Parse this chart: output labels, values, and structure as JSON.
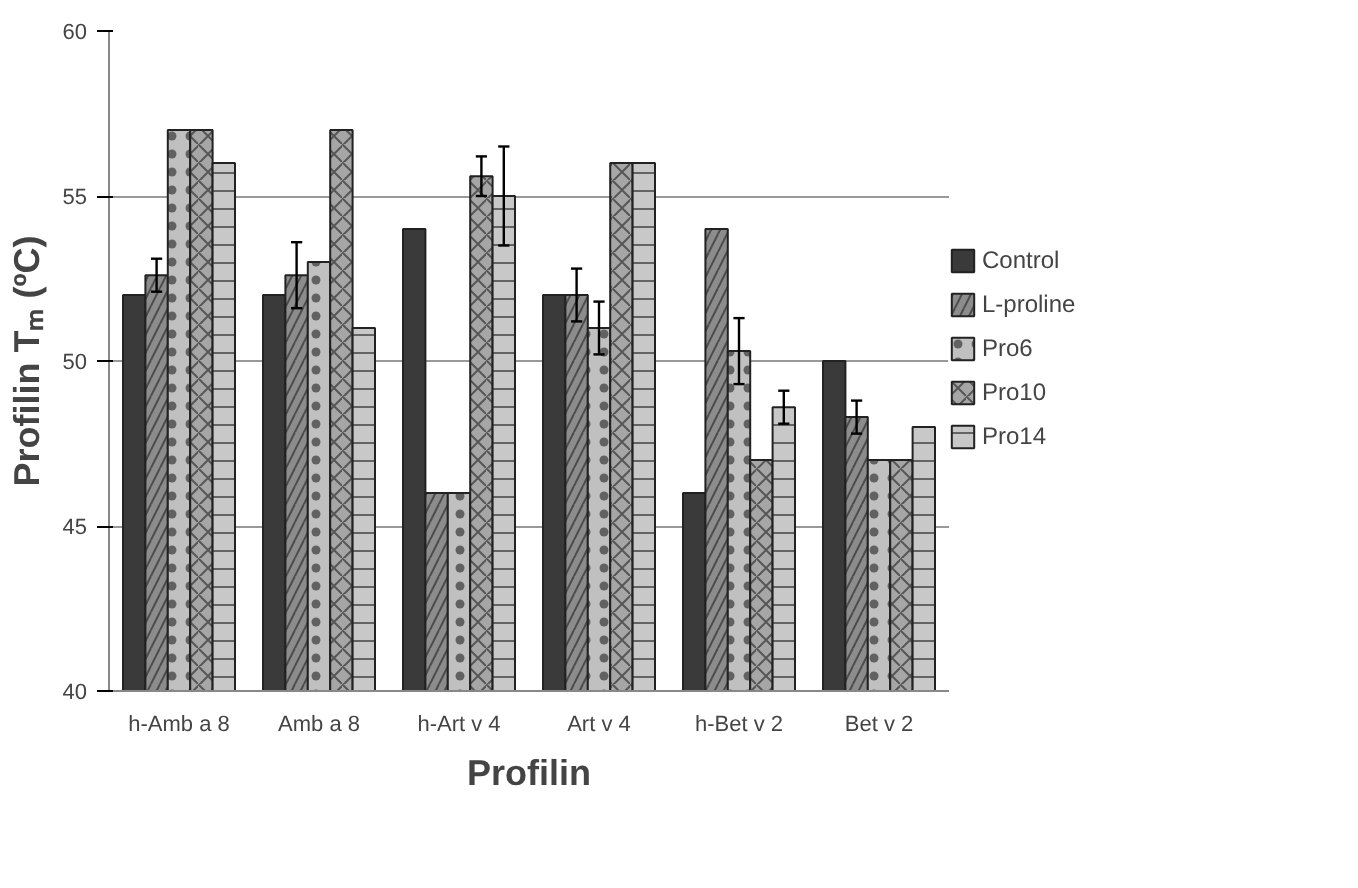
{
  "chart_data": {
    "type": "bar",
    "xlabel": "Profilin",
    "ylabel": "Profilin Tₘ (ºC)",
    "categories": [
      "h-Amb a 8",
      "Amb a 8",
      "h-Art v 4",
      "Art v 4",
      "h-Bet v 2",
      "Bet v 2"
    ],
    "series": [
      {
        "name": "Control",
        "color": "#3a3a3a",
        "values": [
          52,
          52,
          54,
          52,
          46,
          50
        ]
      },
      {
        "name": "L-proline",
        "color": "#8c8c8c",
        "values": [
          52.6,
          52.6,
          46,
          52,
          54,
          48.3
        ],
        "errors": [
          0.5,
          1.0,
          null,
          0.8,
          null,
          0.5
        ]
      },
      {
        "name": "Pro6",
        "color": "#c0c0c0",
        "values": [
          57,
          53,
          46,
          51,
          50.3,
          47
        ],
        "errors": [
          null,
          null,
          null,
          0.8,
          1.0,
          null
        ]
      },
      {
        "name": "Pro10",
        "color": "#a6a6a6",
        "values": [
          57,
          57,
          55.6,
          56,
          47,
          47
        ],
        "errors": [
          null,
          null,
          0.6,
          null,
          null,
          null
        ]
      },
      {
        "name": "Pro14",
        "color": "#c8c8c8",
        "values": [
          56,
          51,
          55,
          56,
          48.6,
          48
        ],
        "errors": [
          null,
          null,
          1.5,
          null,
          0.5,
          null
        ]
      }
    ],
    "ylim": [
      40,
      60
    ],
    "yticks": [
      40,
      45,
      50,
      55,
      60
    ],
    "grid": "y",
    "legend": "right"
  }
}
